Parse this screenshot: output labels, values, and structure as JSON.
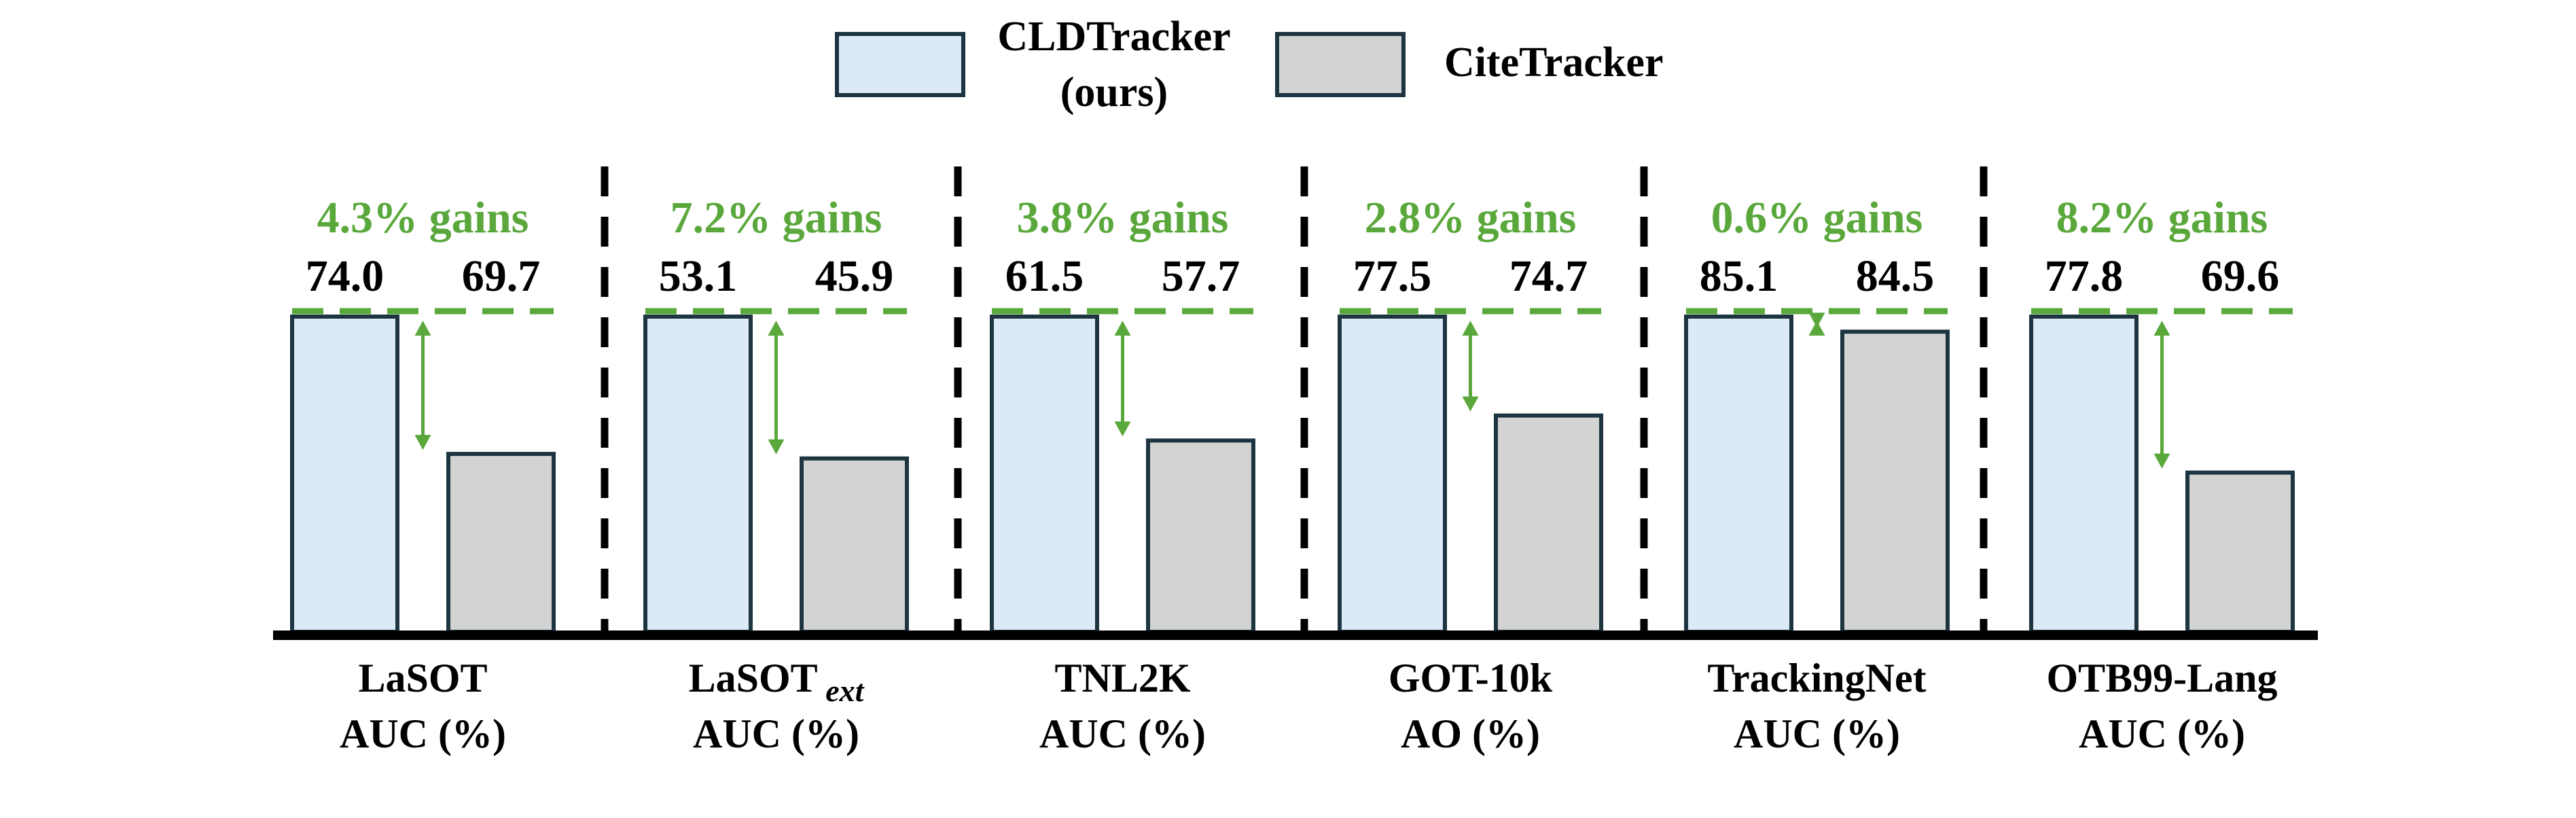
{
  "colors": {
    "cld_fill": "#dce9f6",
    "cite_fill": "#d3d3d3",
    "bar_stroke": "#1d3540",
    "gain_green": "#5aa83c",
    "text": "#000000"
  },
  "legend": {
    "series_1_line1": "CLDTracker",
    "series_1_line2": "(ours)",
    "series_2": "CiteTracker"
  },
  "chart_data": {
    "type": "bar",
    "title": "",
    "series": [
      {
        "name": "CLDTracker (ours)",
        "values": [
          74.0,
          53.1,
          61.5,
          77.5,
          85.1,
          77.8
        ]
      },
      {
        "name": "CiteTracker",
        "values": [
          69.7,
          45.9,
          57.7,
          74.7,
          84.5,
          69.6
        ]
      }
    ],
    "groups": [
      {
        "name": "LaSOT",
        "sub": "",
        "metric": "AUC (%)",
        "cld": 74.0,
        "cite": 69.7,
        "cld_label": "74.0",
        "cite_label": "69.7",
        "gain": "4.3% gains"
      },
      {
        "name": "LaSOT",
        "sub": "ext",
        "metric": "AUC (%)",
        "cld": 53.1,
        "cite": 45.9,
        "cld_label": "53.1",
        "cite_label": "45.9",
        "gain": "7.2% gains"
      },
      {
        "name": "TNL2K",
        "sub": "",
        "metric": "AUC (%)",
        "cld": 61.5,
        "cite": 57.7,
        "cld_label": "61.5",
        "cite_label": "57.7",
        "gain": "3.8% gains"
      },
      {
        "name": "GOT-10k",
        "sub": "",
        "metric": "AO (%)",
        "cld": 77.5,
        "cite": 74.7,
        "cld_label": "77.5",
        "cite_label": "74.7",
        "gain": "2.8% gains"
      },
      {
        "name": "TrackingNet",
        "sub": "",
        "metric": "AUC (%)",
        "cld": 85.1,
        "cite": 84.5,
        "cld_label": "85.1",
        "cite_label": "84.5",
        "gain": "0.6% gains"
      },
      {
        "name": "OTB99-Lang",
        "sub": "",
        "metric": "AUC (%)",
        "cld": 77.8,
        "cite": 69.6,
        "cld_label": "77.8",
        "cite_label": "69.6",
        "gain": "8.2% gains"
      }
    ],
    "xlabel": "",
    "ylabel": "",
    "grid": false,
    "legend_position": "top-center",
    "note": "Each group uses its own baseline scale; CLDTracker bars are normalized to equal height."
  }
}
